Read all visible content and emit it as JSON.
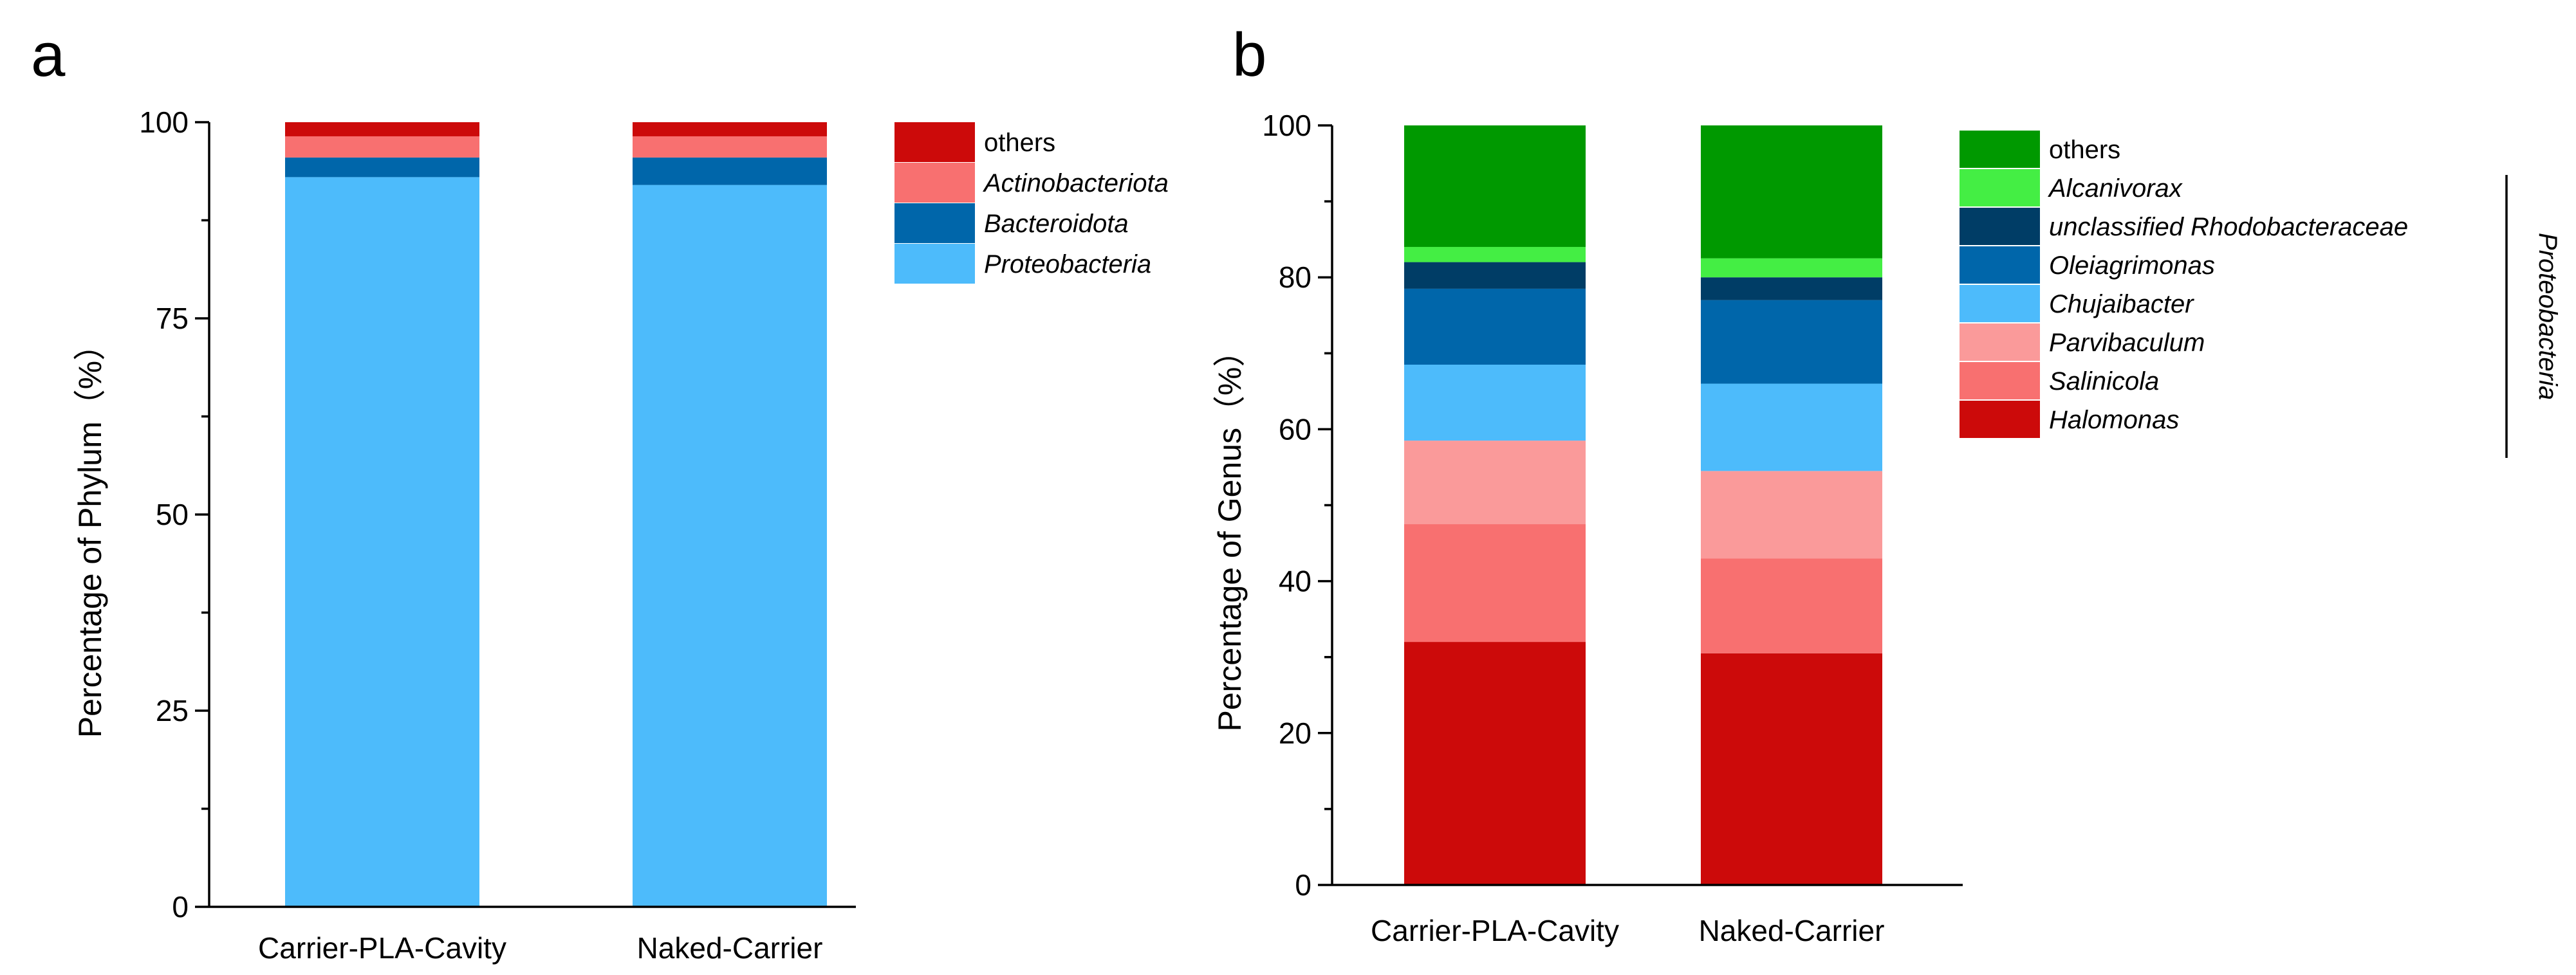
{
  "chart_data": [
    {
      "type": "bar",
      "stacked": true,
      "panel_label": "a",
      "ylabel": "Percentage of Phylum（%）",
      "ylim": [
        0,
        100
      ],
      "yticks": [
        0,
        25,
        50,
        75,
        100
      ],
      "categories": [
        "Carrier-PLA-Cavity",
        "Naked-Carrier"
      ],
      "series": [
        {
          "name": "Proteobacteria",
          "italic": true,
          "color": "#4DBBFB",
          "values": [
            93.0,
            92.0
          ]
        },
        {
          "name": "Bacteroidota",
          "italic": true,
          "color": "#0066AA",
          "values": [
            2.5,
            3.5
          ]
        },
        {
          "name": "Actinobacteriota",
          "italic": true,
          "color": "#F87070",
          "values": [
            2.7,
            2.7
          ]
        },
        {
          "name": "others",
          "italic": false,
          "color": "#CC0A0A",
          "values": [
            1.8,
            1.8
          ]
        }
      ],
      "legend_order": [
        "others",
        "Actinobacteriota",
        "Bacteroidota",
        "Proteobacteria"
      ],
      "legend_position": "top-right"
    },
    {
      "type": "bar",
      "stacked": true,
      "panel_label": "b",
      "ylabel": "Percentage of Genus（%）",
      "ylim": [
        0,
        100
      ],
      "yticks": [
        0,
        20,
        40,
        60,
        80,
        100
      ],
      "categories": [
        "Carrier-PLA-Cavity",
        "Naked-Carrier"
      ],
      "series": [
        {
          "name": "Halomonas",
          "italic": true,
          "color": "#CC0A0A",
          "values": [
            32.0,
            30.5
          ]
        },
        {
          "name": "Salinicola",
          "italic": true,
          "color": "#F87070",
          "values": [
            15.5,
            12.5
          ]
        },
        {
          "name": "Parvibaculum",
          "italic": true,
          "color": "#FA9A9A",
          "values": [
            11.0,
            11.5
          ]
        },
        {
          "name": "Chujaibacter",
          "italic": true,
          "color": "#4DBBFB",
          "values": [
            10.0,
            11.5
          ]
        },
        {
          "name": "Oleiagrimonas",
          "italic": true,
          "color": "#0066AA",
          "values": [
            10.0,
            11.0
          ]
        },
        {
          "name": "unclassified Rhodobacteraceae",
          "italic": true,
          "color": "#003D66",
          "values": [
            3.5,
            3.0
          ]
        },
        {
          "name": "Alcanivorax",
          "italic": true,
          "color": "#44EE44",
          "values": [
            2.0,
            2.5
          ]
        },
        {
          "name": "others",
          "italic": false,
          "color": "#009900",
          "values": [
            16.0,
            17.5
          ]
        }
      ],
      "legend_order": [
        "others",
        "Alcanivorax",
        "unclassified Rhodobacteraceae",
        "Oleiagrimonas",
        "Chujaibacter",
        "Parvibaculum",
        "Salinicola",
        "Halomonas"
      ],
      "legend_position": "top-right",
      "bracket_label": "Proteobacteria"
    }
  ]
}
